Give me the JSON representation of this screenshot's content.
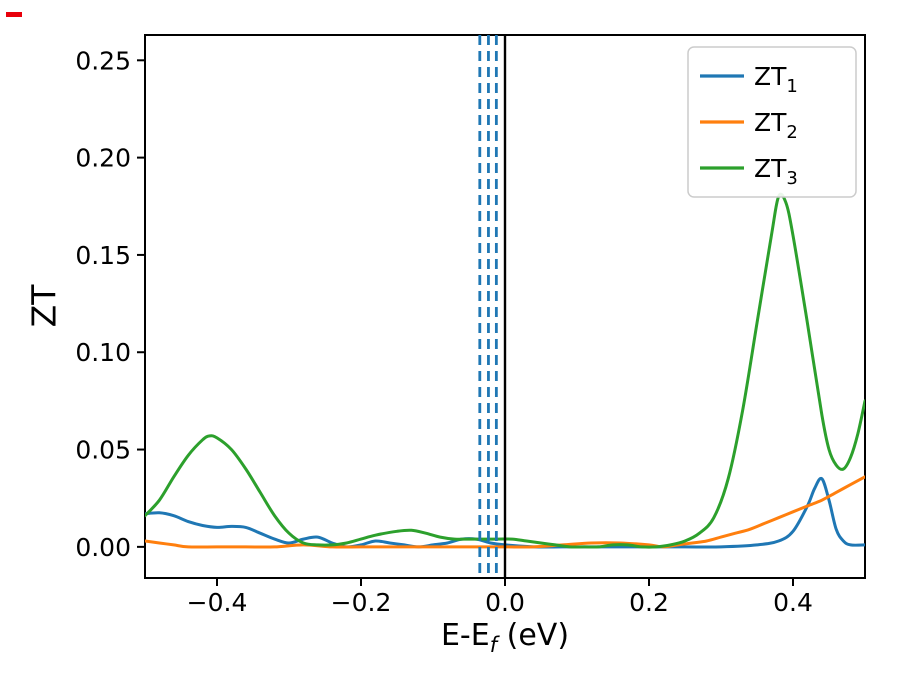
{
  "figure": {
    "background": "#ffffff",
    "corner_mark_color": "#e8000b"
  },
  "chart_data": {
    "type": "line",
    "title": "",
    "xlabel": {
      "prefix": "E-E",
      "sub": "f",
      "suffix": " (eV)"
    },
    "ylabel": "ZT",
    "xlim": [
      -0.5,
      0.5
    ],
    "ylim": [
      -0.016,
      0.263
    ],
    "grid": false,
    "xticks": {
      "values": [
        -0.4,
        -0.2,
        0.0,
        0.2,
        0.4
      ],
      "labels": [
        "−0.4",
        "−0.2",
        "0.0",
        "0.2",
        "0.4"
      ]
    },
    "yticks": {
      "values": [
        0.0,
        0.05,
        0.1,
        0.15,
        0.2,
        0.25
      ],
      "labels": [
        "0.00",
        "0.05",
        "0.10",
        "0.15",
        "0.20",
        "0.25"
      ]
    },
    "vlines": {
      "solid": {
        "x": 0.0,
        "color": "#000000",
        "width": 2.4
      },
      "dashed": {
        "xs": [
          -0.035,
          -0.023,
          -0.012
        ],
        "color": "#1f77b4",
        "width": 2.8
      }
    },
    "legend": {
      "position": "upper right"
    },
    "series": [
      {
        "name": "ZT",
        "sub": "1",
        "color": "#1f77b4",
        "points": [
          [
            -0.5,
            0.017
          ],
          [
            -0.48,
            0.0175
          ],
          [
            -0.46,
            0.016
          ],
          [
            -0.44,
            0.013
          ],
          [
            -0.42,
            0.011
          ],
          [
            -0.4,
            0.01
          ],
          [
            -0.38,
            0.0105
          ],
          [
            -0.36,
            0.01
          ],
          [
            -0.34,
            0.007
          ],
          [
            -0.32,
            0.004
          ],
          [
            -0.3,
            0.002
          ],
          [
            -0.28,
            0.004
          ],
          [
            -0.26,
            0.005
          ],
          [
            -0.24,
            0.002
          ],
          [
            -0.22,
            0.0
          ],
          [
            -0.2,
            0.001
          ],
          [
            -0.18,
            0.003
          ],
          [
            -0.16,
            0.002
          ],
          [
            -0.14,
            0.001
          ],
          [
            -0.12,
            0.0
          ],
          [
            -0.1,
            0.001
          ],
          [
            -0.08,
            0.002
          ],
          [
            -0.06,
            0.004
          ],
          [
            -0.04,
            0.004
          ],
          [
            -0.02,
            0.002
          ],
          [
            0.0,
            0.001
          ],
          [
            0.04,
            0.0
          ],
          [
            0.08,
            0.0
          ],
          [
            0.12,
            0.0
          ],
          [
            0.16,
            0.0
          ],
          [
            0.2,
            0.0
          ],
          [
            0.25,
            0.0
          ],
          [
            0.3,
            0.0
          ],
          [
            0.35,
            0.001
          ],
          [
            0.38,
            0.003
          ],
          [
            0.4,
            0.008
          ],
          [
            0.42,
            0.021
          ],
          [
            0.43,
            0.03
          ],
          [
            0.44,
            0.035
          ],
          [
            0.45,
            0.024
          ],
          [
            0.46,
            0.009
          ],
          [
            0.47,
            0.003
          ],
          [
            0.48,
            0.001
          ],
          [
            0.5,
            0.001
          ]
        ]
      },
      {
        "name": "ZT",
        "sub": "2",
        "color": "#ff7f0e",
        "points": [
          [
            -0.5,
            0.003
          ],
          [
            -0.48,
            0.002
          ],
          [
            -0.46,
            0.001
          ],
          [
            -0.44,
            0.0
          ],
          [
            -0.4,
            0.0
          ],
          [
            -0.36,
            0.0
          ],
          [
            -0.32,
            0.0
          ],
          [
            -0.28,
            0.001
          ],
          [
            -0.24,
            0.0
          ],
          [
            -0.2,
            0.0
          ],
          [
            -0.16,
            0.0
          ],
          [
            -0.12,
            0.0
          ],
          [
            -0.08,
            0.0
          ],
          [
            -0.04,
            0.0
          ],
          [
            0.0,
            0.0
          ],
          [
            0.04,
            0.0
          ],
          [
            0.08,
            0.001
          ],
          [
            0.12,
            0.002
          ],
          [
            0.16,
            0.002
          ],
          [
            0.2,
            0.001
          ],
          [
            0.22,
            0.0
          ],
          [
            0.24,
            0.001
          ],
          [
            0.26,
            0.002
          ],
          [
            0.28,
            0.003
          ],
          [
            0.3,
            0.005
          ],
          [
            0.32,
            0.007
          ],
          [
            0.34,
            0.009
          ],
          [
            0.36,
            0.012
          ],
          [
            0.38,
            0.015
          ],
          [
            0.4,
            0.018
          ],
          [
            0.42,
            0.021
          ],
          [
            0.44,
            0.024
          ],
          [
            0.46,
            0.028
          ],
          [
            0.48,
            0.032
          ],
          [
            0.5,
            0.036
          ]
        ]
      },
      {
        "name": "ZT",
        "sub": "3",
        "color": "#2ca02c",
        "points": [
          [
            -0.5,
            0.016
          ],
          [
            -0.48,
            0.024
          ],
          [
            -0.46,
            0.036
          ],
          [
            -0.44,
            0.047
          ],
          [
            -0.42,
            0.055
          ],
          [
            -0.41,
            0.057
          ],
          [
            -0.4,
            0.056
          ],
          [
            -0.38,
            0.05
          ],
          [
            -0.36,
            0.04
          ],
          [
            -0.34,
            0.028
          ],
          [
            -0.32,
            0.016
          ],
          [
            -0.3,
            0.007
          ],
          [
            -0.28,
            0.002
          ],
          [
            -0.26,
            0.001
          ],
          [
            -0.24,
            0.001
          ],
          [
            -0.22,
            0.002
          ],
          [
            -0.2,
            0.004
          ],
          [
            -0.18,
            0.006
          ],
          [
            -0.15,
            0.008
          ],
          [
            -0.13,
            0.0085
          ],
          [
            -0.11,
            0.007
          ],
          [
            -0.09,
            0.005
          ],
          [
            -0.07,
            0.004
          ],
          [
            -0.05,
            0.004
          ],
          [
            -0.03,
            0.004
          ],
          [
            -0.01,
            0.004
          ],
          [
            0.01,
            0.004
          ],
          [
            0.03,
            0.003
          ],
          [
            0.05,
            0.002
          ],
          [
            0.07,
            0.001
          ],
          [
            0.09,
            0.0
          ],
          [
            0.11,
            0.0
          ],
          [
            0.13,
            0.0
          ],
          [
            0.15,
            0.001
          ],
          [
            0.17,
            0.001
          ],
          [
            0.19,
            0.0
          ],
          [
            0.21,
            0.0
          ],
          [
            0.23,
            0.001
          ],
          [
            0.25,
            0.003
          ],
          [
            0.27,
            0.007
          ],
          [
            0.29,
            0.015
          ],
          [
            0.31,
            0.035
          ],
          [
            0.33,
            0.07
          ],
          [
            0.35,
            0.115
          ],
          [
            0.37,
            0.16
          ],
          [
            0.38,
            0.18
          ],
          [
            0.39,
            0.177
          ],
          [
            0.4,
            0.16
          ],
          [
            0.42,
            0.115
          ],
          [
            0.44,
            0.068
          ],
          [
            0.45,
            0.05
          ],
          [
            0.46,
            0.042
          ],
          [
            0.47,
            0.04
          ],
          [
            0.48,
            0.046
          ],
          [
            0.49,
            0.058
          ],
          [
            0.5,
            0.075
          ]
        ]
      }
    ]
  }
}
